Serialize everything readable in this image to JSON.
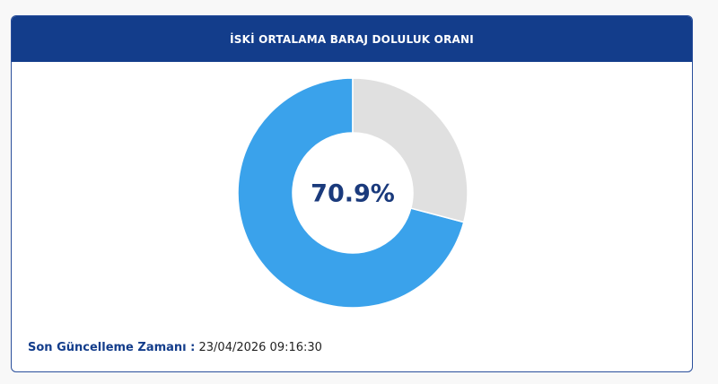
{
  "chart_data": {
    "type": "donut",
    "title": "İSKİ ORTALAMA BARAJ DOLULUK ORANI",
    "values": [
      70.9,
      29.1
    ],
    "value_labels": [
      "70.9%",
      null
    ],
    "colors": [
      "#3aa2eb",
      "#e0e0e0"
    ]
  },
  "footer": {
    "label": "Son Güncelleme Zamanı :",
    "time": "23/04/2026 09:16:30"
  }
}
